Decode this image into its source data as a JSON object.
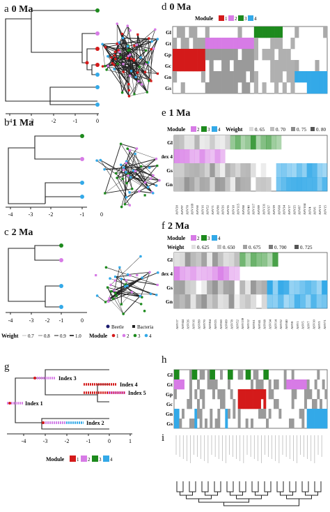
{
  "panels": {
    "a": {
      "letter": "a",
      "title": "0 Ma",
      "ticks": [
        "-4",
        "-3",
        "-2",
        "-1",
        "0"
      ]
    },
    "b": {
      "letter": "b",
      "title": "1 Ma",
      "ticks": [
        "-4",
        "-3",
        "-2",
        "-1",
        "0"
      ]
    },
    "c": {
      "letter": "c",
      "title": "2 Ma",
      "ticks": [
        "-4",
        "-3",
        "-2",
        "-1",
        "0"
      ]
    },
    "d": {
      "letter": "d",
      "title": "0 Ma",
      "module_label": "Module",
      "modules": [
        "1",
        "2",
        "3",
        "4"
      ],
      "rows": [
        "Gl",
        "Gt",
        "Gp",
        "Gc",
        "Gn",
        "Gs"
      ]
    },
    "e": {
      "letter": "e",
      "title": "1 Ma",
      "module_label": "Module",
      "modules": [
        "2",
        "3",
        "4"
      ],
      "weight_label": "Weight",
      "weights": [
        "0. 65",
        "0. 70",
        "0. 75",
        "0. 80"
      ],
      "rows": [
        "Gl",
        "Index 4",
        "Gs",
        "Gn"
      ],
      "cols": [
        "ASV28",
        "ASV97",
        "ASV78",
        "ASV169",
        "ASV60",
        "ASV16",
        "ASV52",
        "ASV71",
        "ASV90",
        "ASV26",
        "ASV35",
        "ASV18",
        "ASV115",
        "ASV88",
        "ASV40",
        "ASV117",
        "ASV89",
        "ASV131",
        "ASV37",
        "ASV29",
        "ASV68",
        "ASV34",
        "ASV17",
        "ASV25",
        "ASV87",
        "ASV104",
        "ASV4",
        "ASV6",
        "ASV13",
        "ASV15"
      ]
    },
    "f": {
      "letter": "f",
      "title": "2 Ma",
      "module_label": "Module",
      "modules": [
        "2",
        "3",
        "4"
      ],
      "weight_label": "Weight",
      "weights": [
        "0. 625",
        "0. 650",
        "0. 675",
        "0. 700",
        "0. 725"
      ],
      "rows": [
        "Gl",
        "Index 4",
        "Gs",
        "Gn"
      ],
      "cols": [
        "ASV17",
        "ASV44",
        "ASV26",
        "ASV16",
        "ASV99",
        "ASV70",
        "ASV84",
        "ASV25",
        "ASV60",
        "ASV89",
        "ASV78",
        "ASV52",
        "ASV139",
        "ASV12",
        "ASV61",
        "ASV41",
        "ASV68",
        "ASV34",
        "ASV14",
        "ASV32",
        "ASV40",
        "ASV8",
        "ASV1",
        "ASV5",
        "ASV7",
        "ASV10",
        "ASV3",
        "ASV71"
      ]
    },
    "g": {
      "letter": "g",
      "ticks": [
        "-4",
        "-3",
        "-2",
        "-1",
        "0",
        "1"
      ],
      "indices": [
        "Index 1",
        "Index 2",
        "Index 3",
        "Index 4",
        "Index 5"
      ],
      "module_label": "Module",
      "modules": [
        "1",
        "2",
        "3",
        "4"
      ]
    },
    "h": {
      "letter": "h",
      "rows": [
        "Gl",
        "Gt",
        "Gp",
        "Gc",
        "Gn",
        "Gs"
      ]
    },
    "i": {
      "letter": "i"
    }
  },
  "network_legend": {
    "beetle": "Beetle",
    "bacteria": "Bacteria",
    "weight_label": "Weight",
    "weights": [
      "0.7",
      "0.8",
      "0.9",
      "1.0"
    ],
    "module_label": "Module",
    "modules": [
      "1",
      "2",
      "3",
      "4"
    ]
  },
  "colors": {
    "module1": "#d41a1a",
    "module2": "#d77be6",
    "module3": "#1d8a1d",
    "module4": "#33a9e8",
    "gray": "#9a9a9a",
    "dark": "#6e6e6e"
  }
}
